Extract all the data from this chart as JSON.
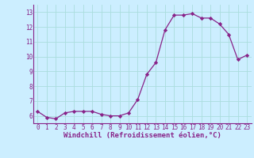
{
  "x": [
    0,
    1,
    2,
    3,
    4,
    5,
    6,
    7,
    8,
    9,
    10,
    11,
    12,
    13,
    14,
    15,
    16,
    17,
    18,
    19,
    20,
    21,
    22,
    23
  ],
  "y": [
    6.3,
    5.9,
    5.8,
    6.2,
    6.3,
    6.3,
    6.3,
    6.1,
    6.0,
    6.0,
    6.2,
    7.1,
    8.8,
    9.6,
    11.8,
    12.8,
    12.8,
    12.9,
    12.6,
    12.6,
    12.2,
    11.5,
    9.8,
    10.1
  ],
  "line_color": "#882288",
  "marker": "D",
  "marker_size": 2.2,
  "bg_color": "#cceeff",
  "grid_color": "#aadddd",
  "xlabel": "Windchill (Refroidissement éolien,°C)",
  "xlim": [
    -0.5,
    23.5
  ],
  "ylim": [
    5.5,
    13.5
  ],
  "yticks": [
    6,
    7,
    8,
    9,
    10,
    11,
    12,
    13
  ],
  "xticks": [
    0,
    1,
    2,
    3,
    4,
    5,
    6,
    7,
    8,
    9,
    10,
    11,
    12,
    13,
    14,
    15,
    16,
    17,
    18,
    19,
    20,
    21,
    22,
    23
  ],
  "tick_fontsize": 5.5,
  "xlabel_fontsize": 6.5
}
